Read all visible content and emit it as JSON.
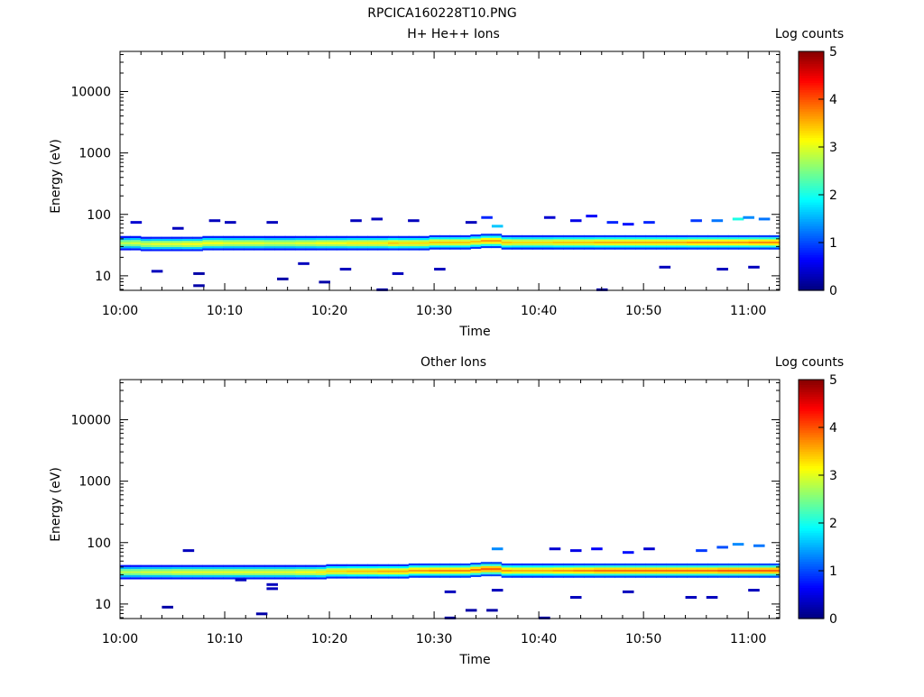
{
  "window_title": "RPCICA160228T10.PNG",
  "colorbar": {
    "label": "Log counts",
    "ticks": [
      "0",
      "1",
      "2",
      "3",
      "4",
      "5"
    ],
    "range": [
      0,
      5
    ]
  },
  "chart_data": [
    {
      "type": "heatmap",
      "title": "H+ He++ Ions",
      "xlabel": "Time",
      "ylabel": "Energy (eV)",
      "x_ticks": [
        "10:00",
        "10:10",
        "10:20",
        "10:30",
        "10:40",
        "10:50",
        "11:00"
      ],
      "y_ticks": [
        "10",
        "100",
        "1000",
        "10000"
      ],
      "y_scale": "log",
      "ylim": [
        5.8,
        45000
      ],
      "xlim_minutes": [
        0,
        63
      ],
      "z_label": "Log counts",
      "zlim": [
        0,
        5
      ],
      "band_center_eV": [
        34,
        34,
        33,
        33,
        33,
        33,
        33,
        33,
        34,
        34,
        34,
        34,
        34,
        34,
        34,
        34,
        34,
        34,
        34,
        34,
        34,
        34,
        34,
        34,
        34,
        34,
        34,
        34,
        34,
        34,
        35,
        35,
        35,
        35,
        36,
        37,
        37,
        35,
        35,
        35,
        35,
        35,
        35,
        35,
        35,
        35,
        35,
        35,
        35,
        35,
        35,
        35,
        35,
        35,
        35,
        35,
        35,
        35,
        35,
        35,
        35,
        35,
        35,
        35
      ],
      "band_peak_log_counts": [
        2.8,
        2.9,
        2.9,
        3.0,
        3.0,
        3.0,
        3.1,
        3.1,
        3.1,
        3.1,
        3.0,
        3.0,
        3.0,
        3.0,
        2.9,
        2.9,
        2.9,
        3.0,
        3.0,
        3.1,
        3.1,
        3.1,
        3.2,
        3.2,
        3.2,
        3.2,
        3.4,
        3.3,
        3.3,
        3.3,
        3.4,
        3.4,
        3.4,
        3.4,
        3.4,
        3.6,
        3.6,
        3.4,
        3.3,
        3.3,
        3.3,
        3.3,
        3.4,
        3.4,
        3.4,
        3.4,
        3.5,
        3.5,
        3.5,
        3.5,
        3.5,
        3.5,
        3.5,
        3.5,
        3.5,
        3.6,
        3.6,
        3.6,
        3.6,
        3.6,
        3.6,
        3.7,
        3.7,
        3.7
      ],
      "sparse_points": [
        {
          "t": 1,
          "e": 75,
          "z": 0.4
        },
        {
          "t": 3,
          "e": 12,
          "z": 0.3
        },
        {
          "t": 5,
          "e": 60,
          "z": 0.3
        },
        {
          "t": 7,
          "e": 11,
          "z": 0.2
        },
        {
          "t": 7,
          "e": 7,
          "z": 0.2
        },
        {
          "t": 8.5,
          "e": 80,
          "z": 0.3
        },
        {
          "t": 10,
          "e": 75,
          "z": 0.3
        },
        {
          "t": 14,
          "e": 75,
          "z": 0.3
        },
        {
          "t": 15,
          "e": 9,
          "z": 0.2
        },
        {
          "t": 17,
          "e": 16,
          "z": 0.3
        },
        {
          "t": 19,
          "e": 8,
          "z": 0.2
        },
        {
          "t": 21,
          "e": 13,
          "z": 0.3
        },
        {
          "t": 22,
          "e": 80,
          "z": 0.3
        },
        {
          "t": 24,
          "e": 85,
          "z": 0.3
        },
        {
          "t": 24.5,
          "e": 6,
          "z": 0.2
        },
        {
          "t": 26,
          "e": 11,
          "z": 0.3
        },
        {
          "t": 27.5,
          "e": 80,
          "z": 0.3
        },
        {
          "t": 30,
          "e": 13,
          "z": 0.3
        },
        {
          "t": 33,
          "e": 75,
          "z": 0.3
        },
        {
          "t": 34.5,
          "e": 90,
          "z": 0.8
        },
        {
          "t": 35.5,
          "e": 65,
          "z": 1.6
        },
        {
          "t": 40.5,
          "e": 90,
          "z": 0.4
        },
        {
          "t": 43,
          "e": 80,
          "z": 0.5
        },
        {
          "t": 44.5,
          "e": 95,
          "z": 0.6
        },
        {
          "t": 46.5,
          "e": 75,
          "z": 0.8
        },
        {
          "t": 48,
          "e": 70,
          "z": 0.7
        },
        {
          "t": 50,
          "e": 75,
          "z": 0.8
        },
        {
          "t": 51.5,
          "e": 14,
          "z": 0.3
        },
        {
          "t": 54.5,
          "e": 80,
          "z": 0.9
        },
        {
          "t": 56.5,
          "e": 80,
          "z": 1.2
        },
        {
          "t": 58.5,
          "e": 85,
          "z": 2.0
        },
        {
          "t": 59.5,
          "e": 90,
          "z": 1.3
        },
        {
          "t": 61,
          "e": 85,
          "z": 1.2
        },
        {
          "t": 45.5,
          "e": 6,
          "z": 0.2
        },
        {
          "t": 57,
          "e": 13,
          "z": 0.3
        },
        {
          "t": 60,
          "e": 14,
          "z": 0.3
        }
      ]
    },
    {
      "type": "heatmap",
      "title": "Other Ions",
      "xlabel": "Time",
      "ylabel": "Energy (eV)",
      "x_ticks": [
        "10:00",
        "10:10",
        "10:20",
        "10:30",
        "10:40",
        "10:50",
        "11:00"
      ],
      "y_ticks": [
        "10",
        "100",
        "1000",
        "10000"
      ],
      "y_scale": "log",
      "ylim": [
        5.8,
        45000
      ],
      "xlim_minutes": [
        0,
        63
      ],
      "z_label": "Log counts",
      "zlim": [
        0,
        5
      ],
      "band_center_eV": [
        33,
        33,
        33,
        33,
        33,
        33,
        33,
        33,
        33,
        33,
        33,
        33,
        33,
        33,
        33,
        33,
        33,
        33,
        33,
        33,
        34,
        34,
        34,
        34,
        34,
        34,
        34,
        34,
        35,
        35,
        35,
        35,
        35,
        35,
        36,
        37,
        37,
        35,
        35,
        35,
        35,
        35,
        35,
        35,
        35,
        35,
        35,
        35,
        35,
        35,
        35,
        35,
        35,
        35,
        35,
        35,
        35,
        35,
        35,
        35,
        35,
        35,
        35,
        35
      ],
      "band_peak_log_counts": [
        2.8,
        2.8,
        2.9,
        2.9,
        2.9,
        3.0,
        3.0,
        3.0,
        3.0,
        3.0,
        3.0,
        3.0,
        3.0,
        3.0,
        3.0,
        3.0,
        3.0,
        3.1,
        3.1,
        3.2,
        3.3,
        3.3,
        3.4,
        3.4,
        3.4,
        3.5,
        3.5,
        3.5,
        3.6,
        3.6,
        3.7,
        3.7,
        3.7,
        3.7,
        3.8,
        3.9,
        3.9,
        3.6,
        3.5,
        3.5,
        3.5,
        3.5,
        3.6,
        3.6,
        3.7,
        3.7,
        3.8,
        3.8,
        3.8,
        3.8,
        3.8,
        3.8,
        3.8,
        3.8,
        3.8,
        3.8,
        3.8,
        3.8,
        3.9,
        3.9,
        3.9,
        3.9,
        3.9,
        3.9
      ],
      "sparse_points": [
        {
          "t": 4,
          "e": 9,
          "z": 0.2
        },
        {
          "t": 6,
          "e": 75,
          "z": 0.3
        },
        {
          "t": 11,
          "e": 25,
          "z": 0.3
        },
        {
          "t": 13,
          "e": 7,
          "z": 0.2
        },
        {
          "t": 14,
          "e": 18,
          "z": 0.3
        },
        {
          "t": 14,
          "e": 21,
          "z": 0.3
        },
        {
          "t": 31,
          "e": 16,
          "z": 0.3
        },
        {
          "t": 31,
          "e": 6,
          "z": 0.2
        },
        {
          "t": 33,
          "e": 8,
          "z": 0.2
        },
        {
          "t": 35,
          "e": 8,
          "z": 0.2
        },
        {
          "t": 35.5,
          "e": 17,
          "z": 0.3
        },
        {
          "t": 35.5,
          "e": 80,
          "z": 1.3
        },
        {
          "t": 40,
          "e": 6,
          "z": 0.2
        },
        {
          "t": 41,
          "e": 80,
          "z": 0.4
        },
        {
          "t": 43,
          "e": 75,
          "z": 0.5
        },
        {
          "t": 43,
          "e": 13,
          "z": 0.3
        },
        {
          "t": 45,
          "e": 80,
          "z": 0.6
        },
        {
          "t": 48,
          "e": 70,
          "z": 0.7
        },
        {
          "t": 48,
          "e": 16,
          "z": 0.3
        },
        {
          "t": 50,
          "e": 80,
          "z": 0.4
        },
        {
          "t": 54,
          "e": 13,
          "z": 0.3
        },
        {
          "t": 55,
          "e": 75,
          "z": 0.9
        },
        {
          "t": 56,
          "e": 13,
          "z": 0.3
        },
        {
          "t": 57,
          "e": 85,
          "z": 1.0
        },
        {
          "t": 58.5,
          "e": 95,
          "z": 1.3
        },
        {
          "t": 60,
          "e": 17,
          "z": 0.3
        },
        {
          "t": 60.5,
          "e": 90,
          "z": 1.2
        }
      ]
    }
  ]
}
